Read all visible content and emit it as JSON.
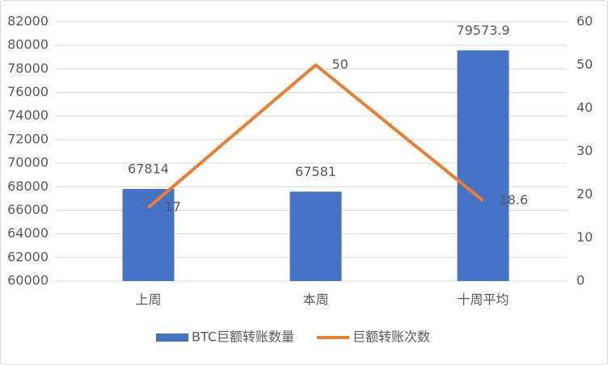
{
  "chart_data": {
    "type": "combo",
    "categories": [
      "上周",
      "本周",
      "十周平均"
    ],
    "series": [
      {
        "name": "BTC巨额转账数量",
        "type": "bar",
        "color": "#4472c4",
        "values": [
          67814,
          67581,
          79573.9
        ]
      },
      {
        "name": "巨额转账次数",
        "type": "line",
        "color": "#ed7d31",
        "axis": "y2",
        "values": [
          17,
          50,
          18.6
        ]
      }
    ],
    "ylim": [
      60000,
      82000
    ],
    "yticks": [
      60000,
      62000,
      64000,
      66000,
      68000,
      70000,
      72000,
      74000,
      76000,
      78000,
      80000,
      82000
    ],
    "y2lim": [
      0,
      60
    ],
    "y2ticks": [
      0,
      10,
      20,
      30,
      40,
      50,
      60
    ],
    "grid": true,
    "legend": "bottom"
  }
}
